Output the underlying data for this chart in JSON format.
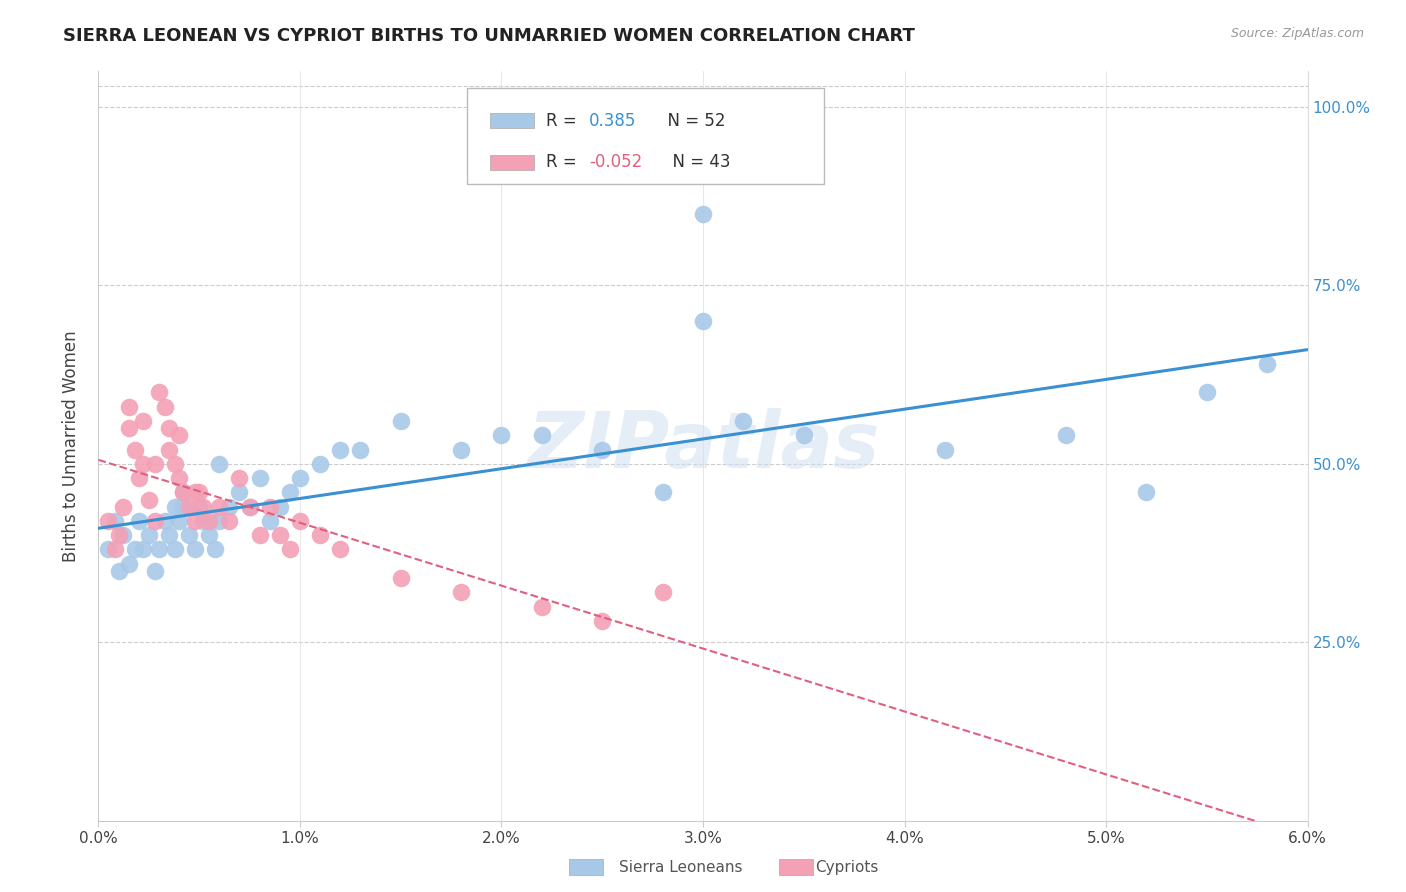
{
  "title": "SIERRA LEONEAN VS CYPRIOT BIRTHS TO UNMARRIED WOMEN CORRELATION CHART",
  "source": "Source: ZipAtlas.com",
  "ylabel": "Births to Unmarried Women",
  "xmin": 0.0,
  "xmax": 6.0,
  "ymin": 0.0,
  "ymax": 105.0,
  "yticks": [
    25.0,
    50.0,
    75.0,
    100.0
  ],
  "xticks": [
    0.0,
    1.0,
    2.0,
    3.0,
    4.0,
    5.0,
    6.0
  ],
  "sierra_color": "#a8c8e8",
  "cypriot_color": "#f4a0b5",
  "sierra_line_color": "#3a90d0",
  "cypriot_line_color": "#e06080",
  "watermark": "ZIPatlas",
  "sierra_x": [
    0.05,
    0.08,
    0.1,
    0.12,
    0.15,
    0.18,
    0.2,
    0.22,
    0.25,
    0.28,
    0.3,
    0.33,
    0.35,
    0.38,
    0.4,
    0.42,
    0.45,
    0.48,
    0.5,
    0.52,
    0.55,
    0.58,
    0.6,
    0.65,
    0.7,
    0.75,
    0.8,
    0.85,
    0.9,
    0.95,
    1.0,
    1.1,
    1.2,
    1.3,
    1.5,
    1.8,
    2.0,
    2.2,
    2.5,
    3.0,
    3.0,
    3.2,
    3.5,
    4.2,
    4.8,
    5.2,
    5.5,
    5.8,
    2.8,
    0.38,
    0.42,
    0.6
  ],
  "sierra_y": [
    38,
    42,
    35,
    40,
    36,
    38,
    42,
    38,
    40,
    35,
    38,
    42,
    40,
    38,
    42,
    44,
    40,
    38,
    44,
    42,
    40,
    38,
    42,
    44,
    46,
    44,
    48,
    42,
    44,
    46,
    48,
    50,
    52,
    52,
    56,
    52,
    54,
    54,
    52,
    85,
    70,
    56,
    54,
    52,
    54,
    46,
    60,
    64,
    46,
    44,
    46,
    50
  ],
  "cypriot_x": [
    0.05,
    0.08,
    0.1,
    0.12,
    0.15,
    0.18,
    0.2,
    0.22,
    0.25,
    0.28,
    0.3,
    0.33,
    0.35,
    0.38,
    0.4,
    0.42,
    0.45,
    0.48,
    0.5,
    0.52,
    0.55,
    0.6,
    0.65,
    0.7,
    0.75,
    0.8,
    0.85,
    0.9,
    0.95,
    1.0,
    1.1,
    1.2,
    1.5,
    1.8,
    2.2,
    2.5,
    2.8,
    0.15,
    0.22,
    0.28,
    0.35,
    0.4,
    0.48
  ],
  "cypriot_y": [
    42,
    38,
    40,
    44,
    55,
    52,
    48,
    50,
    45,
    42,
    60,
    58,
    55,
    50,
    48,
    46,
    44,
    42,
    46,
    44,
    42,
    44,
    42,
    48,
    44,
    40,
    44,
    40,
    38,
    42,
    40,
    38,
    34,
    32,
    30,
    28,
    32,
    58,
    56,
    50,
    52,
    54,
    46
  ]
}
